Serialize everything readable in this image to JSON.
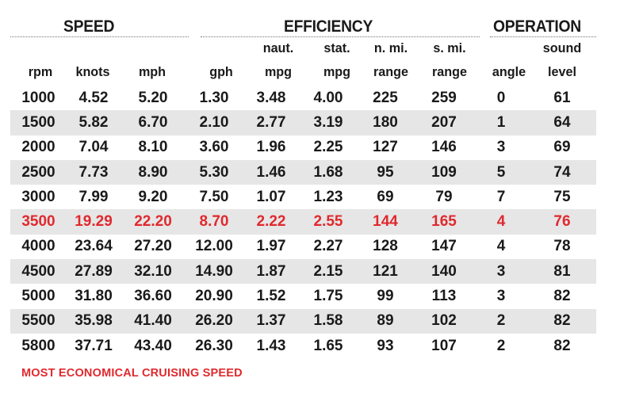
{
  "groups": {
    "speed": "SPEED",
    "efficiency": "EFFICIENCY",
    "operation": "OPERATION"
  },
  "columns": [
    {
      "top": "",
      "bottom": "rpm"
    },
    {
      "top": "",
      "bottom": "knots"
    },
    {
      "top": "",
      "bottom": "mph"
    },
    {
      "top": "",
      "bottom": "gph"
    },
    {
      "top": "naut.",
      "bottom": "mpg"
    },
    {
      "top": "stat.",
      "bottom": "mpg"
    },
    {
      "top": "n. mi.",
      "bottom": "range"
    },
    {
      "top": "s. mi.",
      "bottom": "range"
    },
    {
      "top": "",
      "bottom": "angle"
    },
    {
      "top": "sound",
      "bottom": "level"
    }
  ],
  "rows": [
    [
      "1000",
      "4.52",
      "5.20",
      "1.30",
      "3.48",
      "4.00",
      "225",
      "259",
      "0",
      "61"
    ],
    [
      "1500",
      "5.82",
      "6.70",
      "2.10",
      "2.77",
      "3.19",
      "180",
      "207",
      "1",
      "64"
    ],
    [
      "2000",
      "7.04",
      "8.10",
      "3.60",
      "1.96",
      "2.25",
      "127",
      "146",
      "3",
      "69"
    ],
    [
      "2500",
      "7.73",
      "8.90",
      "5.30",
      "1.46",
      "1.68",
      "95",
      "109",
      "5",
      "74"
    ],
    [
      "3000",
      "7.99",
      "9.20",
      "7.50",
      "1.07",
      "1.23",
      "69",
      "79",
      "7",
      "75"
    ],
    [
      "3500",
      "19.29",
      "22.20",
      "8.70",
      "2.22",
      "2.55",
      "144",
      "165",
      "4",
      "76"
    ],
    [
      "4000",
      "23.64",
      "27.20",
      "12.00",
      "1.97",
      "2.27",
      "128",
      "147",
      "4",
      "78"
    ],
    [
      "4500",
      "27.89",
      "32.10",
      "14.90",
      "1.87",
      "2.15",
      "121",
      "140",
      "3",
      "81"
    ],
    [
      "5000",
      "31.80",
      "36.60",
      "20.90",
      "1.52",
      "1.75",
      "99",
      "113",
      "3",
      "82"
    ],
    [
      "5500",
      "35.98",
      "41.40",
      "26.20",
      "1.37",
      "1.58",
      "89",
      "102",
      "2",
      "82"
    ],
    [
      "5800",
      "37.71",
      "43.40",
      "26.30",
      "1.43",
      "1.65",
      "93",
      "107",
      "2",
      "82"
    ]
  ],
  "highlight_row": 5,
  "highlight_color": "#e0292e",
  "alt_row_color": "#e6e6e6",
  "footnote": "MOST ECONOMICAL CRUISING SPEED"
}
